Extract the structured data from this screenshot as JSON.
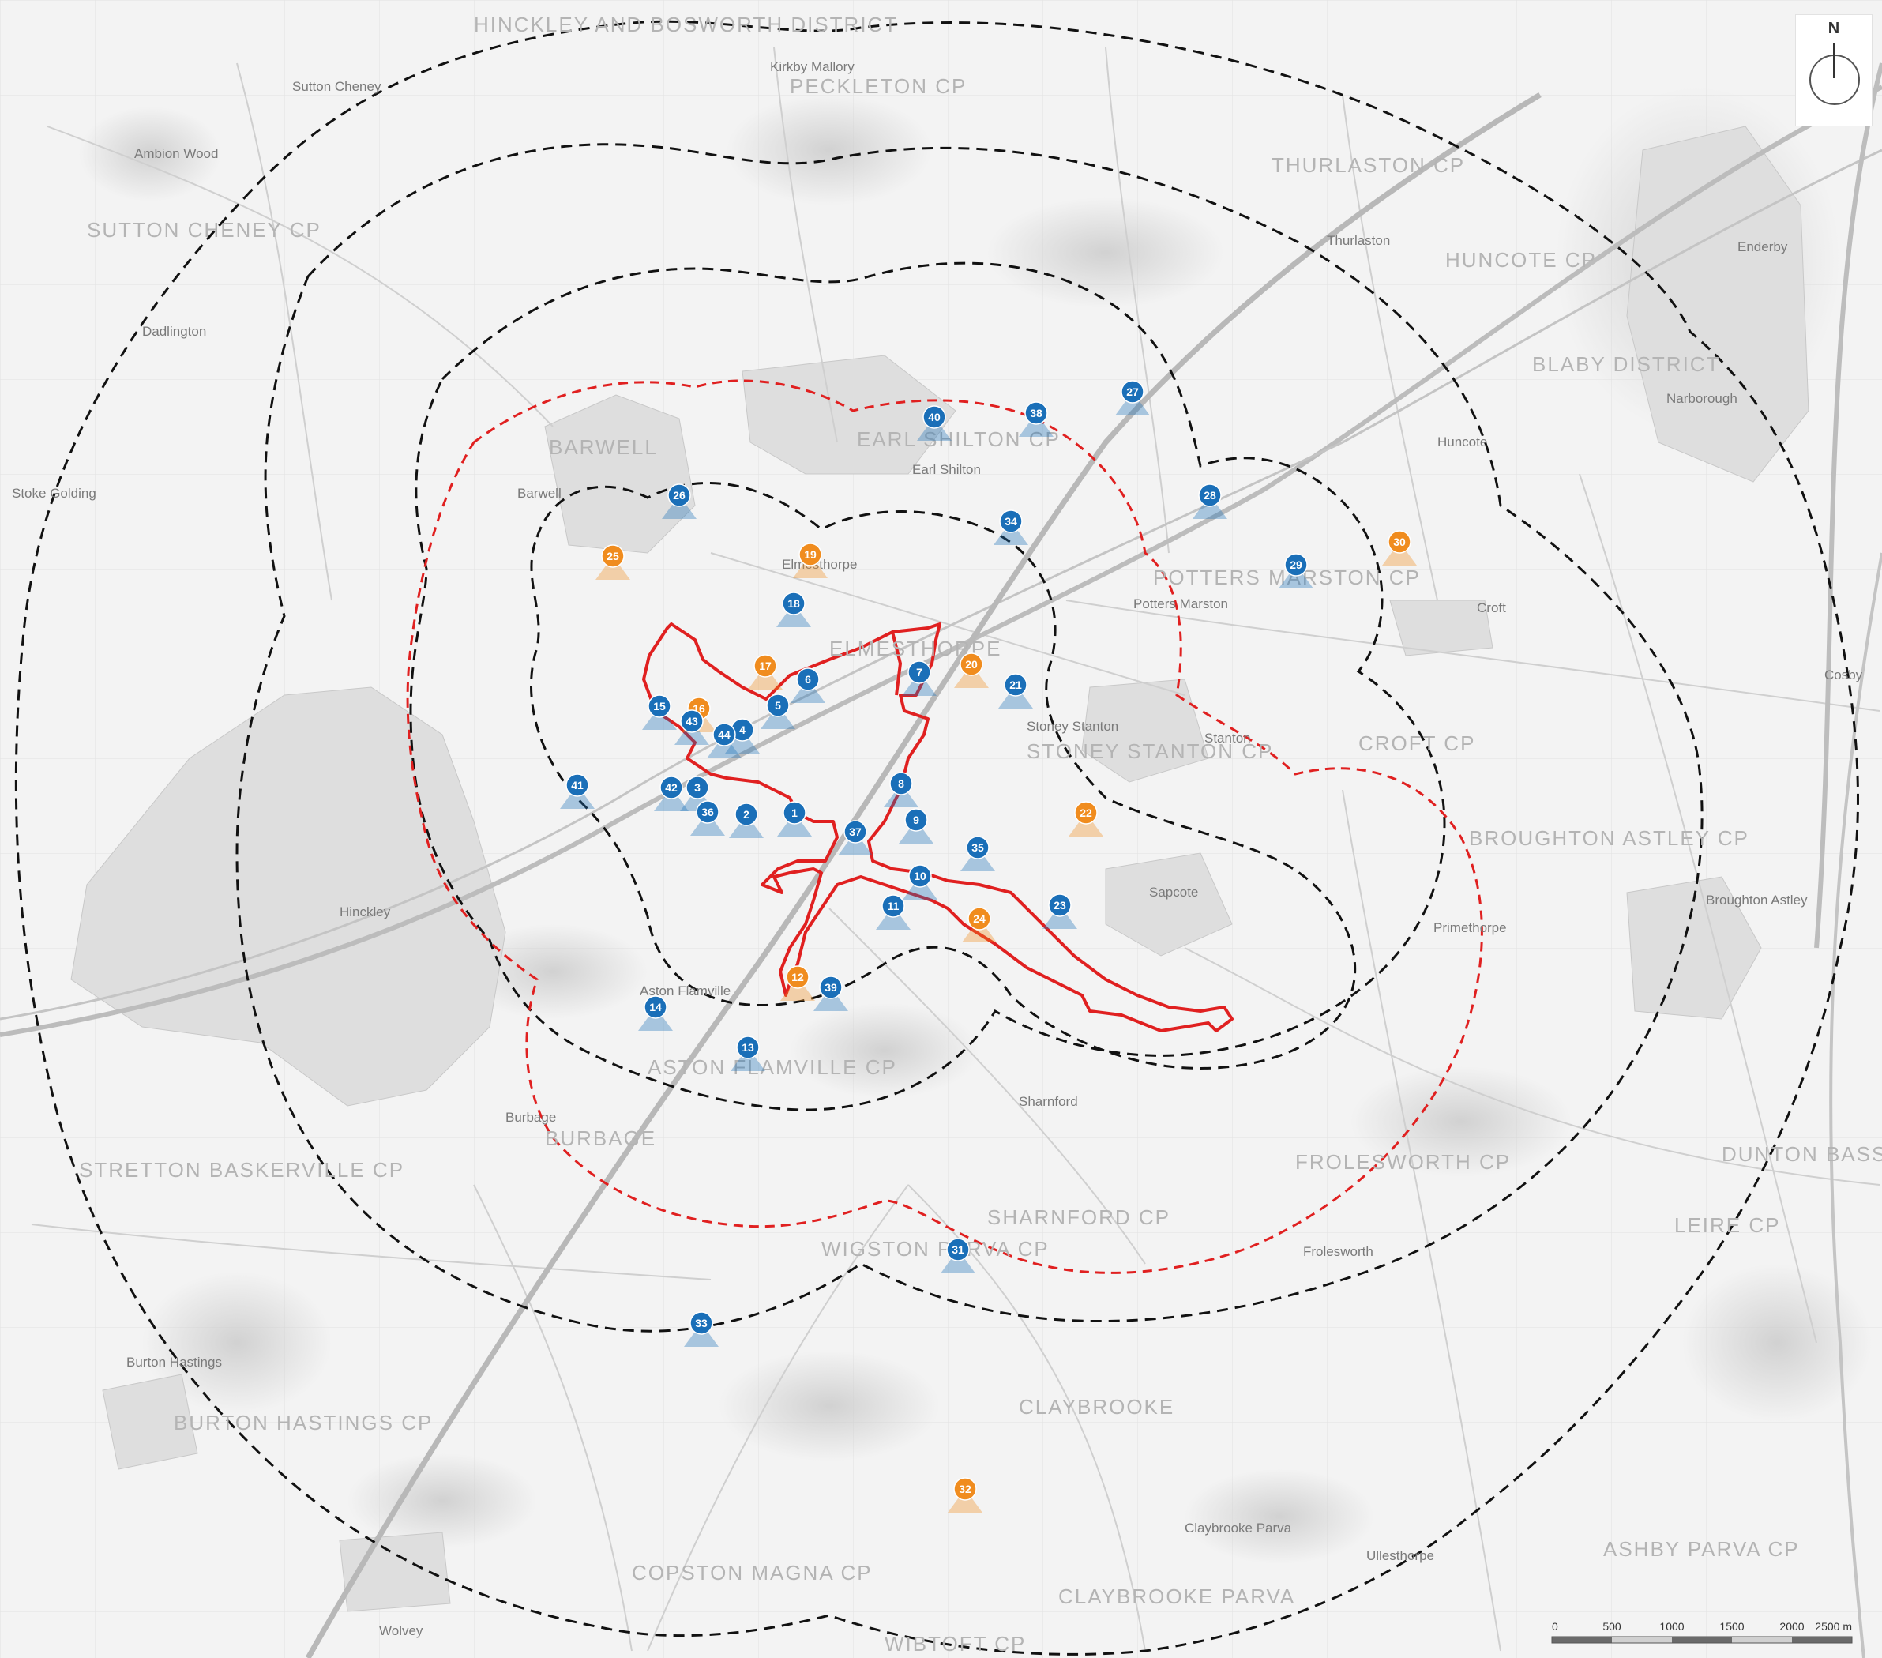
{
  "north_label": "N",
  "scale": {
    "labels": [
      "0",
      "500",
      "1000",
      "1500",
      "2000",
      "2500 m"
    ]
  },
  "colors": {
    "background": "#f3f3f3",
    "site_boundary": "#e02020",
    "zone_of_influence": "#e02020",
    "distance_rings": "#111111",
    "viewpoint_blue": "#1a6fb8",
    "viewpoint_orange": "#f08c1e"
  },
  "parishes": [
    "HINCKLEY AND BOSWORTH DISTRICT",
    "PECKLETON CP",
    "SUTTON CHENEY CP",
    "THURLASTON CP",
    "HUNCOTE CP",
    "BLABY DISTRICT",
    "BARWELL",
    "EARL SHILTON CP",
    "POTTERS MARSTON CP",
    "ELMESTHORPE",
    "STONEY STANTON CP",
    "CROFT CP",
    "BROUGHTON ASTLEY CP",
    "ASTON FLAMVILLE CP",
    "BURBAGE",
    "STRETTON BASKERVILLE CP",
    "SHARNFORD CP",
    "FROLESWORTH CP",
    "DUNTON BASSETT",
    "LEIRE CP",
    "WIGSTON PARVA CP",
    "CLAYBROOKE",
    "BURTON HASTINGS CP",
    "COPSTON MAGNA CP",
    "CLAYBROOKE PARVA",
    "WIBTOFT CP",
    "ASHBY PARVA CP"
  ],
  "places": [
    "Kirkby Mallory",
    "Sutton Cheney",
    "Ambion Wood",
    "Dadlington",
    "Stoke Golding",
    "Barwell",
    "Earl Shilton",
    "Thurlaston",
    "Enderby",
    "Narborough",
    "Huncote",
    "Croft",
    "Stanton",
    "Sapcote",
    "Primethorpe",
    "Broughton Astley",
    "Cosby",
    "Hinckley",
    "Burbage",
    "Aston Flamville",
    "Sharnford",
    "Wolvey",
    "Burton Hastings",
    "Claybrooke Parva",
    "Ullesthorpe",
    "Frolesworth",
    "Elmesthorpe",
    "Stoney Stanton",
    "Potters Marston"
  ],
  "viewpoints": [
    {
      "n": "1",
      "color": "blue"
    },
    {
      "n": "2",
      "color": "blue"
    },
    {
      "n": "3",
      "color": "blue"
    },
    {
      "n": "4",
      "color": "blue"
    },
    {
      "n": "5",
      "color": "blue"
    },
    {
      "n": "6",
      "color": "blue"
    },
    {
      "n": "7",
      "color": "blue"
    },
    {
      "n": "8",
      "color": "blue"
    },
    {
      "n": "9",
      "color": "blue"
    },
    {
      "n": "10",
      "color": "blue"
    },
    {
      "n": "11",
      "color": "blue"
    },
    {
      "n": "12",
      "color": "orange"
    },
    {
      "n": "13",
      "color": "blue"
    },
    {
      "n": "14",
      "color": "blue"
    },
    {
      "n": "15",
      "color": "blue"
    },
    {
      "n": "16",
      "color": "orange"
    },
    {
      "n": "17",
      "color": "orange"
    },
    {
      "n": "18",
      "color": "blue"
    },
    {
      "n": "19",
      "color": "orange"
    },
    {
      "n": "20",
      "color": "orange"
    },
    {
      "n": "21",
      "color": "blue"
    },
    {
      "n": "22",
      "color": "orange"
    },
    {
      "n": "23",
      "color": "blue"
    },
    {
      "n": "24",
      "color": "orange"
    },
    {
      "n": "25",
      "color": "orange"
    },
    {
      "n": "26",
      "color": "blue"
    },
    {
      "n": "27",
      "color": "blue"
    },
    {
      "n": "28",
      "color": "blue"
    },
    {
      "n": "29",
      "color": "blue"
    },
    {
      "n": "30",
      "color": "orange"
    },
    {
      "n": "31",
      "color": "blue"
    },
    {
      "n": "32",
      "color": "orange"
    },
    {
      "n": "33",
      "color": "blue"
    },
    {
      "n": "34",
      "color": "blue"
    },
    {
      "n": "35",
      "color": "blue"
    },
    {
      "n": "36",
      "color": "blue"
    },
    {
      "n": "37",
      "color": "blue"
    },
    {
      "n": "38",
      "color": "blue"
    },
    {
      "n": "39",
      "color": "blue"
    },
    {
      "n": "40",
      "color": "blue"
    },
    {
      "n": "41",
      "color": "blue"
    },
    {
      "n": "42",
      "color": "blue"
    },
    {
      "n": "43",
      "color": "blue"
    },
    {
      "n": "44",
      "color": "blue"
    }
  ]
}
